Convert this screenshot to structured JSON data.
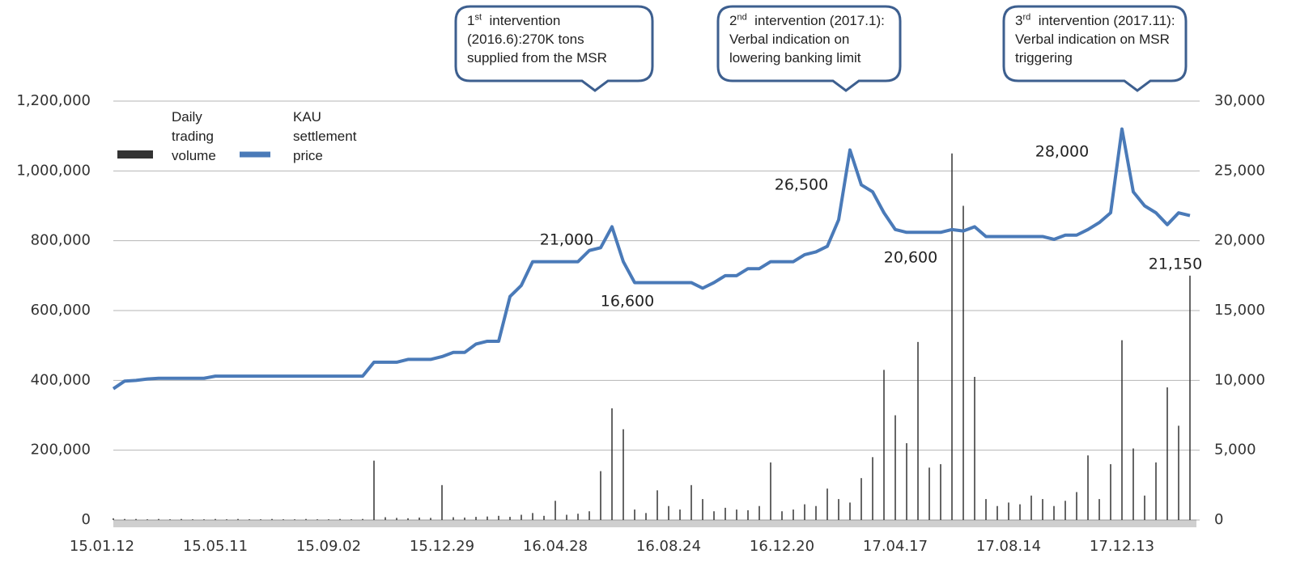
{
  "chart_data": {
    "type": "bar_line",
    "categories": [
      "15.01.12",
      null,
      null,
      null,
      null,
      null,
      null,
      null,
      null,
      null,
      "15.05.11",
      null,
      null,
      null,
      null,
      null,
      null,
      null,
      null,
      null,
      "15.09.02",
      null,
      null,
      null,
      null,
      null,
      null,
      null,
      null,
      null,
      "15.12.29",
      null,
      null,
      null,
      null,
      null,
      null,
      null,
      null,
      null,
      "16.04.28",
      null,
      null,
      null,
      null,
      null,
      null,
      null,
      null,
      null,
      "16.08.24",
      null,
      null,
      null,
      null,
      null,
      null,
      null,
      null,
      null,
      "16.12.20",
      null,
      null,
      null,
      null,
      null,
      null,
      null,
      null,
      null,
      "17.04.17",
      null,
      null,
      null,
      null,
      null,
      null,
      null,
      null,
      null,
      "17.08.14",
      null,
      null,
      null,
      null,
      null,
      null,
      null,
      null,
      null,
      "17.12.13",
      null,
      null,
      null,
      null,
      null
    ],
    "series": [
      {
        "name": "Daily trading volume",
        "color": "#333333",
        "type": "bar",
        "axis": "y",
        "values": [
          5000,
          3000,
          3000,
          2000,
          3000,
          2000,
          3000,
          2000,
          2000,
          3000,
          2000,
          3000,
          2000,
          2000,
          3000,
          2000,
          2000,
          3000,
          2000,
          2000,
          3000,
          2000,
          3000,
          170000,
          8000,
          6000,
          5000,
          7000,
          6000,
          100000,
          8000,
          7000,
          9000,
          10000,
          12000,
          9000,
          15000,
          20000,
          12000,
          55000,
          15000,
          18000,
          25000,
          140000,
          320000,
          260000,
          30000,
          20000,
          85000,
          40000,
          30000,
          100000,
          60000,
          25000,
          35000,
          30000,
          28000,
          40000,
          165000,
          25000,
          30000,
          45000,
          40000,
          90000,
          60000,
          50000,
          120000,
          180000,
          430000,
          300000,
          220000,
          510000,
          150000,
          160000,
          1050000,
          900000,
          410000,
          60000,
          40000,
          50000,
          45000,
          70000,
          60000,
          40000,
          55000,
          80000,
          185000,
          60000,
          160000,
          515000,
          205000,
          70000,
          165000,
          380000,
          270000,
          700000
        ]
      },
      {
        "name": "KAU settlement price",
        "color": "#4a7ab8",
        "type": "line",
        "axis": "y2",
        "values": [
          9400,
          9950,
          10000,
          10100,
          10150,
          10150,
          10150,
          10150,
          10150,
          10300,
          10300,
          10300,
          10300,
          10300,
          10300,
          10300,
          10300,
          10300,
          10300,
          10300,
          10300,
          10300,
          10300,
          11300,
          11300,
          11300,
          11500,
          11500,
          11500,
          11700,
          12000,
          12000,
          12600,
          12800,
          12800,
          16000,
          16800,
          18500,
          18500,
          18500,
          18500,
          18500,
          19300,
          19500,
          21000,
          18500,
          17000,
          17000,
          17000,
          17000,
          17000,
          17000,
          16600,
          17000,
          17500,
          17500,
          18000,
          18000,
          18500,
          18500,
          18500,
          19000,
          19200,
          19600,
          21500,
          26500,
          24000,
          23500,
          22000,
          20800,
          20600,
          20600,
          20600,
          20600,
          20800,
          20700,
          21000,
          20300,
          20300,
          20300,
          20300,
          20300,
          20300,
          20100,
          20400,
          20400,
          20800,
          21300,
          22000,
          28000,
          23500,
          22500,
          22000,
          21150,
          22000,
          21800
        ]
      }
    ],
    "ylim": [
      0,
      1200000
    ],
    "yticks": [
      0,
      {
        "value": 200000,
        "label": "200,000"
      },
      {
        "value": 400000,
        "label": "400,000"
      },
      {
        "value": 600000,
        "label": "600,000"
      },
      {
        "value": 800000,
        "label": "800,000"
      },
      {
        "value": 1000000,
        "label": "1,000,000"
      },
      {
        "value": 1200000,
        "label": "1,200,000"
      }
    ],
    "y2lim": [
      0,
      30000
    ],
    "y2ticks": [
      0,
      {
        "value": 5000,
        "label": "5,000"
      },
      {
        "value": 10000,
        "label": "10,000"
      },
      {
        "value": 15000,
        "label": "15,000"
      },
      {
        "value": 20000,
        "label": "20,000"
      },
      {
        "value": 25000,
        "label": "25,000"
      },
      {
        "value": 30000,
        "label": "30,000"
      }
    ],
    "grid": true,
    "legend": "upper left",
    "annotations": [
      "21,000",
      "16,600",
      "26,500",
      "20,600",
      "28,000",
      "21,150"
    ],
    "callouts": [
      {
        "ordinal": "1",
        "suffix": "st",
        "lines": [
          "intervention",
          "(2016.6):270K tons",
          "supplied from the MSR"
        ]
      },
      {
        "ordinal": "2",
        "suffix": "nd",
        "lines": [
          "intervention (2017.1):",
          "Verbal indication on",
          "lowering banking limit"
        ]
      },
      {
        "ordinal": "3",
        "suffix": "rd",
        "lines": [
          "intervention (2017.11):",
          "Verbal indication on MSR",
          "triggering"
        ]
      }
    ]
  }
}
